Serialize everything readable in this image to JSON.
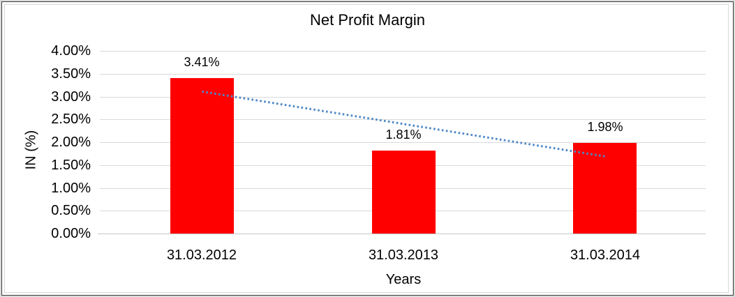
{
  "chart_data": {
    "type": "bar",
    "title": "Net Profit Margin",
    "xlabel": "Years",
    "ylabel": "IN (%)",
    "categories": [
      "31.03.2012",
      "31.03.2013",
      "31.03.2014"
    ],
    "values": [
      3.41,
      1.81,
      1.98
    ],
    "value_labels": [
      "3.41%",
      "1.81%",
      "1.98%"
    ],
    "ylim": [
      0,
      4
    ],
    "y_tick_step": 0.5,
    "y_tick_labels": [
      "0.00%",
      "0.50%",
      "1.00%",
      "1.50%",
      "2.00%",
      "2.50%",
      "3.00%",
      "3.50%",
      "4.00%"
    ],
    "grid": true,
    "legend": "none",
    "trendline": {
      "type": "linear",
      "style": "dotted",
      "start_value": 3.11,
      "end_value": 1.69
    }
  },
  "colors": {
    "bar": "#FF0000",
    "trendline": "#4D87C7",
    "gridline": "#D9D9D9",
    "axis_line": "#C6C6C6",
    "text": "#000000",
    "frame_border": "#3A3A3A",
    "chart_border": "#D9D9D9",
    "outer_background": "#DADADA",
    "chart_background": "#FFFFFF"
  }
}
